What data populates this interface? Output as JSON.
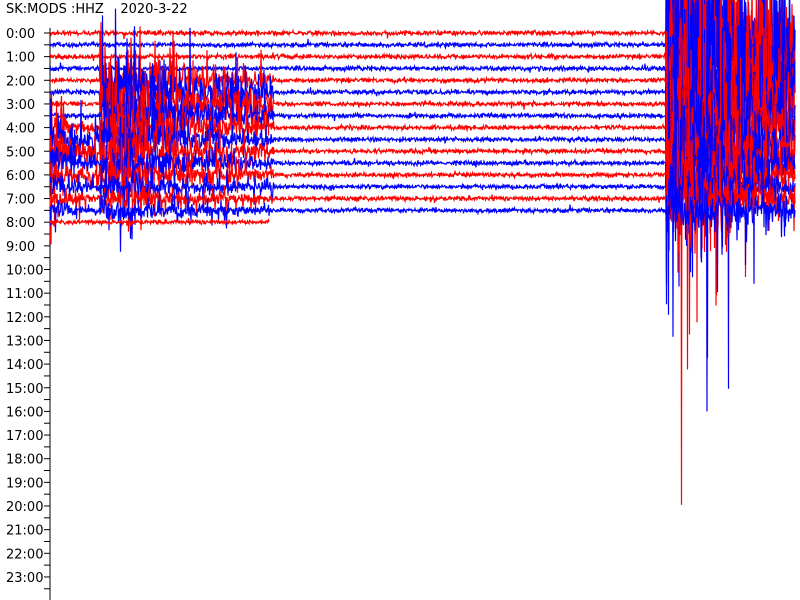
{
  "title": "SK:MODS :HHZ    2020-3-22",
  "chart_data": {
    "type": "line",
    "subtype": "helicorder",
    "station": "SK:MODS",
    "channel": "HHZ",
    "date": "2020-3-22",
    "row_minutes": 30,
    "hour_labels": [
      "0:00",
      "1:00",
      "2:00",
      "3:00",
      "4:00",
      "5:00",
      "6:00",
      "7:00",
      "8:00",
      "9:00",
      "10:00",
      "11:00",
      "12:00",
      "13:00",
      "14:00",
      "15:00",
      "16:00",
      "17:00",
      "18:00",
      "19:00",
      "20:00",
      "21:00",
      "22:00",
      "23:00"
    ],
    "recorded_rows": [
      "0:00",
      "0:30",
      "1:00",
      "1:30",
      "2:00",
      "2:30",
      "3:00",
      "3:30",
      "4:00",
      "4:30",
      "5:00",
      "5:30",
      "6:00",
      "6:30",
      "7:00",
      "7:30",
      "8:00"
    ],
    "last_row_end_minute": 8.8,
    "colors": [
      "#ff0000",
      "#0000ff"
    ],
    "events": [
      {
        "start": "4:00",
        "minute_from": 0,
        "minute_to": 2,
        "rows": 8,
        "amplitude": "large"
      },
      {
        "start": "2:00",
        "minute_from": 2,
        "minute_to": 9,
        "rows": 12,
        "amplitude": "very large"
      },
      {
        "start": "0:00",
        "minute_from": 24.8,
        "minute_to": 30,
        "rows": 16,
        "amplitude": "extreme"
      }
    ]
  }
}
